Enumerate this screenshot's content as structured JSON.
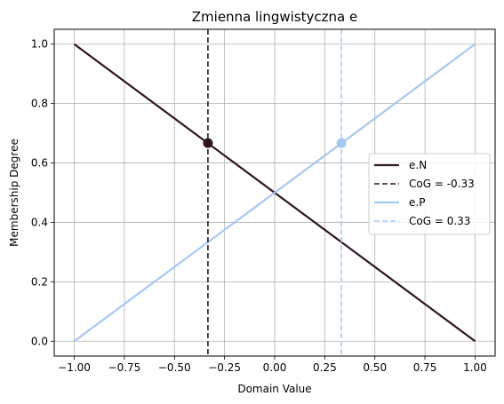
{
  "chart_data": {
    "type": "line",
    "title": "Zmienna lingwistyczna e",
    "xlabel": "Domain Value",
    "ylabel": "Membership Degree",
    "xlim": [
      -1.1,
      1.1
    ],
    "ylim": [
      -0.05,
      1.05
    ],
    "x_ticks": [
      -1.0,
      -0.75,
      -0.5,
      -0.25,
      0.0,
      0.25,
      0.5,
      0.75,
      1.0
    ],
    "x_tick_labels": [
      "−1.00",
      "−0.75",
      "−0.50",
      "−0.25",
      "0.00",
      "0.25",
      "0.50",
      "0.75",
      "1.00"
    ],
    "y_ticks": [
      0.0,
      0.2,
      0.4,
      0.6,
      0.8,
      1.0
    ],
    "y_tick_labels": [
      "0.0",
      "0.2",
      "0.4",
      "0.6",
      "0.8",
      "1.0"
    ],
    "grid": true,
    "legend_position": "center-right",
    "series": [
      {
        "name": "e.N",
        "x": [
          -1.0,
          1.0
        ],
        "y": [
          1.0,
          0.0
        ],
        "color": "#2e161e",
        "style": "solid"
      },
      {
        "name": "e.P",
        "x": [
          -1.0,
          1.0
        ],
        "y": [
          0.0,
          1.0
        ],
        "color": "#a3c9f0",
        "style": "solid"
      }
    ],
    "cog_lines": [
      {
        "name": "CoG = -0.33",
        "x": -0.333,
        "y": 0.667,
        "color": "#2e161e",
        "style": "dashed"
      },
      {
        "name": "CoG = 0.33",
        "x": 0.333,
        "y": 0.667,
        "color": "#a3c9f0",
        "style": "dashed"
      }
    ],
    "legend_entries": [
      {
        "label": "e.N",
        "color": "#2e161e",
        "style": "solid"
      },
      {
        "label": "CoG = -0.33",
        "color": "#2e161e",
        "style": "dashed"
      },
      {
        "label": "e.P",
        "color": "#a3c9f0",
        "style": "solid"
      },
      {
        "label": "CoG = 0.33",
        "color": "#a3c9f0",
        "style": "dashed"
      }
    ]
  }
}
